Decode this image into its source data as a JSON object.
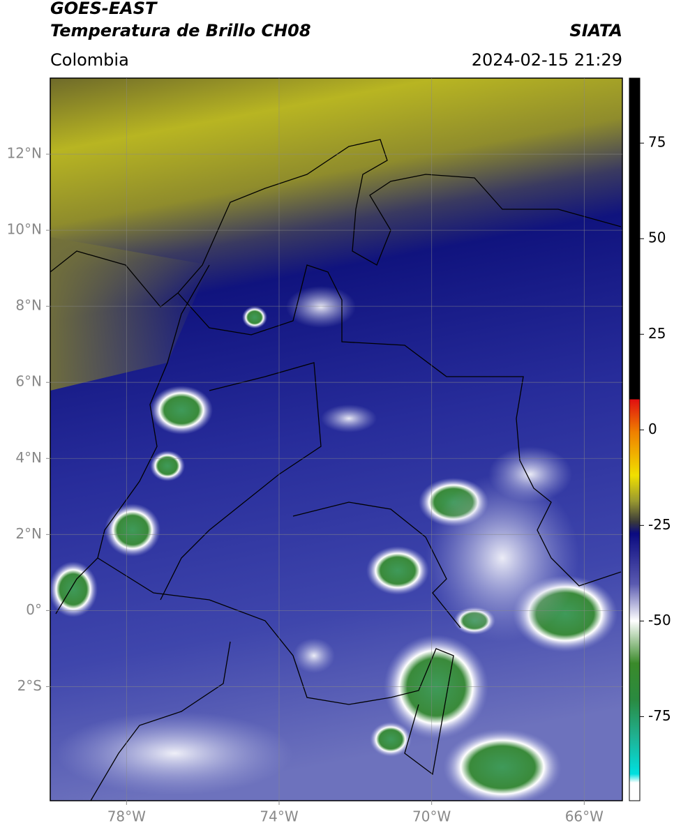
{
  "header": {
    "title": "GOES-EAST",
    "subtitle": "Temperatura de Brillo CH08",
    "region": "Colombia",
    "source": "SIATA",
    "datetime": "2024-02-15 21:29"
  },
  "map": {
    "xlim": [
      -80,
      -65
    ],
    "ylim": [
      -5,
      14
    ],
    "xticks": [
      {
        "value": -78,
        "label": "78°W"
      },
      {
        "value": -74,
        "label": "74°W"
      },
      {
        "value": -70,
        "label": "70°W"
      },
      {
        "value": -66,
        "label": "66°W"
      }
    ],
    "yticks": [
      {
        "value": 12,
        "label": "12°N"
      },
      {
        "value": 10,
        "label": "10°N"
      },
      {
        "value": 8,
        "label": "8°N"
      },
      {
        "value": 6,
        "label": "6°N"
      },
      {
        "value": 4,
        "label": "4°N"
      },
      {
        "value": 2,
        "label": "2°N"
      },
      {
        "value": 0,
        "label": "0°"
      },
      {
        "value": -2,
        "label": "2°S"
      }
    ],
    "grid": true
  },
  "colorbar": {
    "lim": [
      -97,
      92
    ],
    "ticks": [
      75,
      50,
      25,
      0,
      -25,
      -50,
      -75
    ]
  }
}
